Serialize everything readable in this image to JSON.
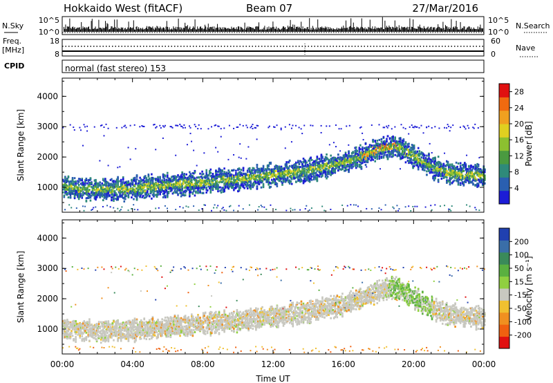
{
  "header": {
    "station": "Hokkaido West (fitACF)",
    "beam": "Beam 07",
    "date": "27/Mar/2016"
  },
  "noise_panel": {
    "left_label": "N.Sky",
    "right_label": "N.Search",
    "left_ticks": [
      "10^5",
      "10^0"
    ],
    "right_ticks": [
      "10^5",
      "10^0"
    ]
  },
  "freq_panel": {
    "left_label_1": "Freq.",
    "left_label_2": "[MHz]",
    "right_label": "Nave",
    "left_ticks": [
      "18",
      "8"
    ],
    "right_ticks": [
      "60",
      "0"
    ]
  },
  "cpid_panel": {
    "label": "CPID",
    "text": "normal (fast stereo) 153"
  },
  "power_panel": {
    "ylabel": "Slant Range [km]",
    "cbar_label": "Power [dB]",
    "yticks": [
      "1000",
      "2000",
      "3000",
      "4000"
    ],
    "cbar_ticks": [
      "4",
      "8",
      "12",
      "16",
      "20",
      "24",
      "28"
    ],
    "cbar_colors": [
      "#1c1cd6",
      "#2a5fb0",
      "#2f8a7a",
      "#4a9a40",
      "#8cc030",
      "#e0d020",
      "#f0a020",
      "#f06a10",
      "#e01010"
    ]
  },
  "velocity_panel": {
    "ylabel": "Slant Range [km]",
    "cbar_label": "Velocity [m s⁻¹]",
    "yticks": [
      "1000",
      "2000",
      "3000",
      "4000"
    ],
    "cbar_ticks": [
      "200",
      "100",
      "50",
      "15",
      "-15",
      "-50",
      "-100",
      "-200"
    ],
    "cbar_colors": [
      "#2040b0",
      "#3a6ea8",
      "#3a8a5a",
      "#5ab040",
      "#90d040",
      "#c8c8c0",
      "#f0c030",
      "#f09020",
      "#f06010",
      "#e01010"
    ]
  },
  "xaxis": {
    "label": "Time UT",
    "ticks": [
      "00:00",
      "04:00",
      "08:00",
      "12:00",
      "16:00",
      "20:00",
      "00:00"
    ]
  },
  "chart_data": [
    {
      "type": "heatmap",
      "title": "Power",
      "ylabel": "Slant Range [km]",
      "xlabel": "",
      "xlim": [
        0,
        24
      ],
      "ylim": [
        180,
        4600
      ],
      "colorbar_range": [
        0,
        30
      ],
      "band_center_km": [
        [
          0,
          1050
        ],
        [
          2,
          950
        ],
        [
          4,
          1000
        ],
        [
          6,
          1100
        ],
        [
          8,
          1200
        ],
        [
          10,
          1300
        ],
        [
          12,
          1450
        ],
        [
          14,
          1600
        ],
        [
          16,
          1850
        ],
        [
          17,
          2050
        ],
        [
          18,
          2300
        ],
        [
          19,
          2400
        ],
        [
          20,
          2050
        ],
        [
          21,
          1700
        ],
        [
          22,
          1500
        ],
        [
          24,
          1400
        ]
      ]
    },
    {
      "type": "heatmap",
      "title": "Velocity",
      "ylabel": "Slant Range [km]",
      "xlabel": "Time UT",
      "xlim": [
        0,
        24
      ],
      "ylim": [
        180,
        4600
      ],
      "colorbar_range": [
        -250,
        250
      ],
      "band_center_km": [
        [
          0,
          1050
        ],
        [
          2,
          950
        ],
        [
          4,
          1000
        ],
        [
          6,
          1100
        ],
        [
          8,
          1200
        ],
        [
          10,
          1300
        ],
        [
          12,
          1450
        ],
        [
          14,
          1600
        ],
        [
          16,
          1850
        ],
        [
          17,
          2050
        ],
        [
          18,
          2300
        ],
        [
          19,
          2400
        ],
        [
          20,
          2050
        ],
        [
          21,
          1700
        ],
        [
          22,
          1500
        ],
        [
          24,
          1400
        ]
      ]
    }
  ]
}
